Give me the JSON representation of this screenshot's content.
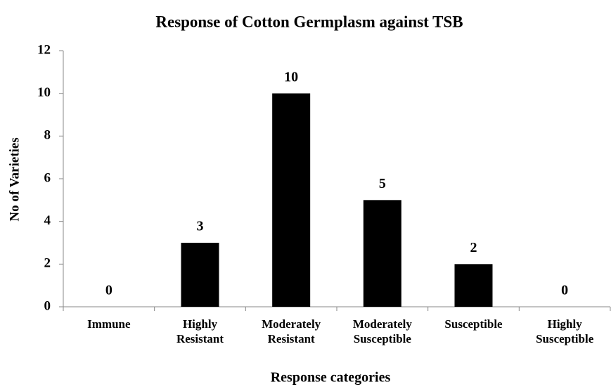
{
  "chart_data": {
    "type": "bar",
    "title": "Response of Cotton Germplasm  against TSB",
    "x_label": "Response categories",
    "y_label": "No of Varieties",
    "categories": [
      "Immune",
      "Highly Resistant",
      "Moderately Resistant",
      "Moderately Susceptible",
      "Susceptible",
      "Highly Susceptible"
    ],
    "values": [
      0,
      3,
      10,
      5,
      2,
      0
    ],
    "color": "#000000",
    "ylim": [
      0,
      12
    ],
    "yticks": [
      0,
      2,
      4,
      6,
      8,
      10,
      12
    ],
    "grid": false
  }
}
